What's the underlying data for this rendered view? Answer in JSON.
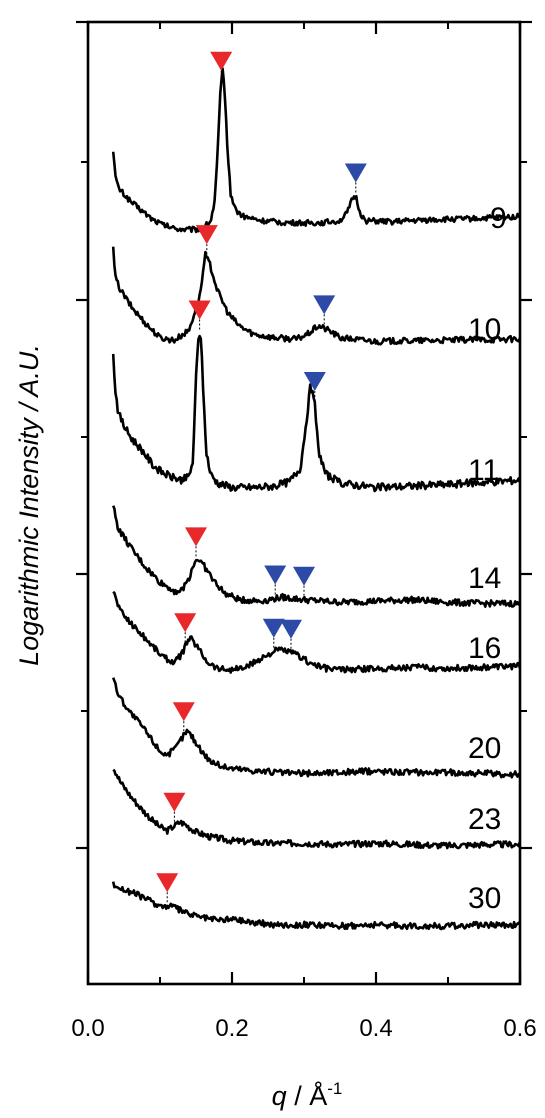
{
  "chart_data": {
    "type": "line",
    "xlabel_symbol": "q",
    "xlabel_unit": " / Å",
    "xlabel_exponent": "-1",
    "ylabel": "Logarithmic Intensity / A.U.",
    "xlim": [
      0.0,
      0.6
    ],
    "x_ticks": [
      "0.0",
      "0.2",
      "0.4",
      "0.6"
    ],
    "grid": false,
    "peak_marker_colors": {
      "red": "#e8282b",
      "blue": "#2d4aa6"
    },
    "series": [
      {
        "name": "9",
        "points": [
          [
            0.035,
            0.88
          ],
          [
            0.038,
            0.63
          ],
          [
            0.042,
            0.53
          ],
          [
            0.05,
            0.47
          ],
          [
            0.06,
            0.4
          ],
          [
            0.075,
            0.32
          ],
          [
            0.09,
            0.24
          ],
          [
            0.105,
            0.19
          ],
          [
            0.12,
            0.16
          ],
          [
            0.135,
            0.15
          ],
          [
            0.15,
            0.15
          ],
          [
            0.16,
            0.17
          ],
          [
            0.17,
            0.22
          ],
          [
            0.176,
            0.4
          ],
          [
            0.18,
            0.85
          ],
          [
            0.184,
            1.4
          ],
          [
            0.187,
            1.6
          ],
          [
            0.19,
            1.4
          ],
          [
            0.194,
            0.85
          ],
          [
            0.198,
            0.48
          ],
          [
            0.205,
            0.33
          ],
          [
            0.215,
            0.27
          ],
          [
            0.24,
            0.23
          ],
          [
            0.28,
            0.21
          ],
          [
            0.32,
            0.21
          ],
          [
            0.35,
            0.23
          ],
          [
            0.36,
            0.3
          ],
          [
            0.368,
            0.44
          ],
          [
            0.372,
            0.45
          ],
          [
            0.378,
            0.3
          ],
          [
            0.385,
            0.23
          ],
          [
            0.42,
            0.22
          ],
          [
            0.48,
            0.24
          ],
          [
            0.54,
            0.25
          ],
          [
            0.6,
            0.27
          ]
        ],
        "red_marker_q": 0.185,
        "blue_marker_q": [
          0.372
        ]
      },
      {
        "name": "10",
        "points": [
          [
            0.035,
            0.9
          ],
          [
            0.038,
            0.66
          ],
          [
            0.045,
            0.56
          ],
          [
            0.06,
            0.42
          ],
          [
            0.08,
            0.28
          ],
          [
            0.1,
            0.16
          ],
          [
            0.12,
            0.14
          ],
          [
            0.14,
            0.22
          ],
          [
            0.155,
            0.5
          ],
          [
            0.163,
            0.85
          ],
          [
            0.17,
            0.76
          ],
          [
            0.18,
            0.55
          ],
          [
            0.195,
            0.36
          ],
          [
            0.21,
            0.26
          ],
          [
            0.23,
            0.19
          ],
          [
            0.26,
            0.16
          ],
          [
            0.29,
            0.15
          ],
          [
            0.305,
            0.19
          ],
          [
            0.32,
            0.26
          ],
          [
            0.335,
            0.22
          ],
          [
            0.35,
            0.16
          ],
          [
            0.4,
            0.13
          ],
          [
            0.5,
            0.14
          ],
          [
            0.6,
            0.15
          ]
        ],
        "red_marker_q": 0.165,
        "blue_marker_q": [
          0.328
        ]
      },
      {
        "name": "11",
        "points": [
          [
            0.035,
            0.95
          ],
          [
            0.038,
            0.72
          ],
          [
            0.042,
            0.57
          ],
          [
            0.05,
            0.48
          ],
          [
            0.06,
            0.4
          ],
          [
            0.075,
            0.32
          ],
          [
            0.09,
            0.22
          ],
          [
            0.1,
            0.18
          ],
          [
            0.115,
            0.14
          ],
          [
            0.13,
            0.12
          ],
          [
            0.14,
            0.14
          ],
          [
            0.146,
            0.25
          ],
          [
            0.15,
            0.8
          ],
          [
            0.154,
            1.12
          ],
          [
            0.157,
            1.05
          ],
          [
            0.16,
            0.72
          ],
          [
            0.164,
            0.32
          ],
          [
            0.17,
            0.16
          ],
          [
            0.18,
            0.1
          ],
          [
            0.2,
            0.07
          ],
          [
            0.23,
            0.07
          ],
          [
            0.26,
            0.08
          ],
          [
            0.28,
            0.11
          ],
          [
            0.295,
            0.2
          ],
          [
            0.303,
            0.5
          ],
          [
            0.309,
            0.75
          ],
          [
            0.315,
            0.62
          ],
          [
            0.32,
            0.32
          ],
          [
            0.33,
            0.16
          ],
          [
            0.35,
            0.1
          ],
          [
            0.4,
            0.07
          ],
          [
            0.5,
            0.09
          ],
          [
            0.6,
            0.12
          ]
        ],
        "red_marker_q": 0.155,
        "blue_marker_q": [
          0.315
        ]
      },
      {
        "name": "14",
        "points": [
          [
            0.035,
            0.8
          ],
          [
            0.042,
            0.62
          ],
          [
            0.06,
            0.46
          ],
          [
            0.08,
            0.31
          ],
          [
            0.1,
            0.19
          ],
          [
            0.12,
            0.12
          ],
          [
            0.13,
            0.12
          ],
          [
            0.14,
            0.22
          ],
          [
            0.148,
            0.35
          ],
          [
            0.152,
            0.38
          ],
          [
            0.16,
            0.33
          ],
          [
            0.175,
            0.2
          ],
          [
            0.19,
            0.1
          ],
          [
            0.21,
            0.05
          ],
          [
            0.24,
            0.04
          ],
          [
            0.27,
            0.07
          ],
          [
            0.3,
            0.05
          ],
          [
            0.35,
            0.03
          ],
          [
            0.4,
            0.04
          ],
          [
            0.45,
            0.05
          ],
          [
            0.5,
            0.03
          ],
          [
            0.55,
            0.02
          ],
          [
            0.6,
            0.02
          ]
        ],
        "red_marker_q": 0.15,
        "blue_marker_q": [
          0.26,
          0.3
        ]
      },
      {
        "name": "16",
        "points": [
          [
            0.035,
            0.68
          ],
          [
            0.045,
            0.52
          ],
          [
            0.06,
            0.42
          ],
          [
            0.075,
            0.33
          ],
          [
            0.09,
            0.24
          ],
          [
            0.105,
            0.15
          ],
          [
            0.12,
            0.11
          ],
          [
            0.13,
            0.17
          ],
          [
            0.138,
            0.28
          ],
          [
            0.143,
            0.3
          ],
          [
            0.15,
            0.25
          ],
          [
            0.165,
            0.12
          ],
          [
            0.18,
            0.06
          ],
          [
            0.2,
            0.05
          ],
          [
            0.22,
            0.07
          ],
          [
            0.24,
            0.14
          ],
          [
            0.26,
            0.2
          ],
          [
            0.27,
            0.21
          ],
          [
            0.29,
            0.17
          ],
          [
            0.31,
            0.1
          ],
          [
            0.33,
            0.06
          ],
          [
            0.36,
            0.05
          ],
          [
            0.4,
            0.06
          ],
          [
            0.45,
            0.07
          ],
          [
            0.5,
            0.06
          ],
          [
            0.55,
            0.07
          ],
          [
            0.6,
            0.08
          ]
        ],
        "red_marker_q": 0.135,
        "blue_marker_q": [
          0.258,
          0.282
        ]
      },
      {
        "name": "20",
        "points": [
          [
            0.035,
            0.8
          ],
          [
            0.04,
            0.68
          ],
          [
            0.05,
            0.58
          ],
          [
            0.06,
            0.5
          ],
          [
            0.075,
            0.4
          ],
          [
            0.09,
            0.28
          ],
          [
            0.1,
            0.2
          ],
          [
            0.11,
            0.17
          ],
          [
            0.12,
            0.21
          ],
          [
            0.13,
            0.3
          ],
          [
            0.137,
            0.36
          ],
          [
            0.143,
            0.33
          ],
          [
            0.155,
            0.22
          ],
          [
            0.17,
            0.12
          ],
          [
            0.19,
            0.07
          ],
          [
            0.22,
            0.05
          ],
          [
            0.26,
            0.03
          ],
          [
            0.3,
            0.02
          ],
          [
            0.35,
            0.03
          ],
          [
            0.4,
            0.04
          ],
          [
            0.45,
            0.03
          ],
          [
            0.5,
            0.03
          ],
          [
            0.55,
            0.02
          ],
          [
            0.6,
            0.01
          ]
        ],
        "red_marker_q": 0.133,
        "blue_marker_q": []
      },
      {
        "name": "23",
        "points": [
          [
            0.035,
            0.64
          ],
          [
            0.045,
            0.52
          ],
          [
            0.06,
            0.4
          ],
          [
            0.075,
            0.3
          ],
          [
            0.09,
            0.21
          ],
          [
            0.1,
            0.16
          ],
          [
            0.11,
            0.13
          ],
          [
            0.12,
            0.17
          ],
          [
            0.128,
            0.2
          ],
          [
            0.135,
            0.18
          ],
          [
            0.15,
            0.12
          ],
          [
            0.17,
            0.08
          ],
          [
            0.2,
            0.05
          ],
          [
            0.25,
            0.03
          ],
          [
            0.3,
            0.03
          ],
          [
            0.35,
            0.02
          ],
          [
            0.4,
            0.03
          ],
          [
            0.45,
            0.02
          ],
          [
            0.5,
            0.01
          ],
          [
            0.55,
            0.02
          ],
          [
            0.6,
            0.02
          ]
        ],
        "red_marker_q": 0.12,
        "blue_marker_q": []
      },
      {
        "name": "30",
        "points": [
          [
            0.035,
            0.35
          ],
          [
            0.05,
            0.3
          ],
          [
            0.065,
            0.27
          ],
          [
            0.08,
            0.23
          ],
          [
            0.095,
            0.18
          ],
          [
            0.105,
            0.16
          ],
          [
            0.115,
            0.17
          ],
          [
            0.125,
            0.14
          ],
          [
            0.14,
            0.1
          ],
          [
            0.16,
            0.07
          ],
          [
            0.18,
            0.05
          ],
          [
            0.2,
            0.06
          ],
          [
            0.23,
            0.03
          ],
          [
            0.26,
            0.01
          ],
          [
            0.3,
            0.01
          ],
          [
            0.35,
            0.0
          ],
          [
            0.4,
            0.01
          ],
          [
            0.45,
            0.0
          ],
          [
            0.5,
            0.0
          ],
          [
            0.55,
            0.01
          ],
          [
            0.6,
            0.01
          ]
        ],
        "red_marker_q": 0.11,
        "blue_marker_q": []
      }
    ]
  }
}
